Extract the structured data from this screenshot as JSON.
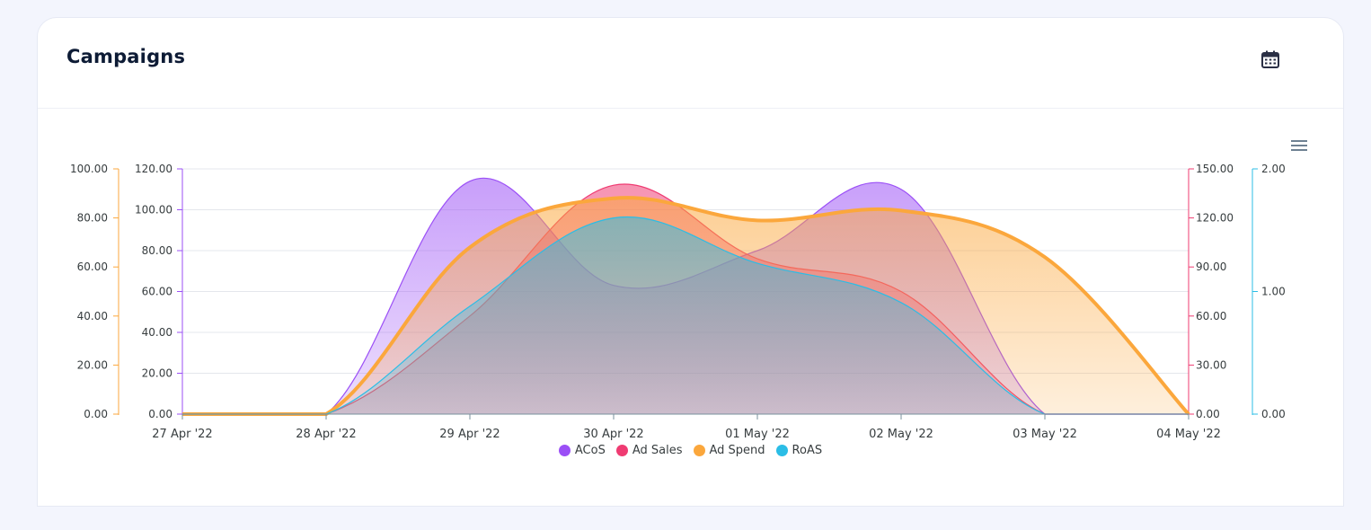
{
  "header": {
    "title": "Campaigns",
    "calendar_icon": "calendar-icon",
    "menu_icon": "hamburger-menu-icon"
  },
  "chart_data": {
    "type": "area",
    "categories": [
      "27 Apr '22",
      "28 Apr '22",
      "29 Apr '22",
      "30 Apr '22",
      "01 May '22",
      "02 May '22",
      "03 May '22",
      "04 May '22"
    ],
    "series": [
      {
        "name": "ACoS",
        "color": "#9b4ff6",
        "axis": "acos",
        "values": [
          0,
          0,
          114,
          63,
          80,
          110,
          0,
          0
        ]
      },
      {
        "name": "Ad Sales",
        "color": "#ef3b72",
        "axis": "sales",
        "values": [
          0,
          0,
          60,
          140,
          95,
          75,
          0,
          0
        ]
      },
      {
        "name": "Ad Spend",
        "color": "#fba73c",
        "axis": "spend",
        "values": [
          0,
          0,
          68,
          88,
          79,
          83,
          64,
          0
        ]
      },
      {
        "name": "RoAS",
        "color": "#2bbde6",
        "axis": "roas",
        "values": [
          0,
          0,
          0.88,
          1.6,
          1.23,
          0.91,
          0,
          0
        ]
      }
    ],
    "axes": {
      "spend": {
        "min": 0,
        "max": 100,
        "ticks": [
          "100.00",
          "80.00",
          "60.00",
          "40.00",
          "20.00",
          "0.00"
        ],
        "color": "#fba73c"
      },
      "acos": {
        "min": 0,
        "max": 120,
        "ticks": [
          "120.00",
          "100.00",
          "80.00",
          "60.00",
          "40.00",
          "20.00",
          "0.00"
        ],
        "color": "#9b4ff6"
      },
      "sales": {
        "min": 0,
        "max": 150,
        "ticks": [
          "150.00",
          "120.00",
          "90.00",
          "60.00",
          "30.00",
          "0.00"
        ],
        "color": "#ef3b72"
      },
      "roas": {
        "min": 0,
        "max": 2,
        "ticks": [
          "2.00",
          "1.00",
          "0.00"
        ],
        "color": "#2bbde6"
      }
    },
    "grid": true,
    "legend_position": "bottom-center"
  }
}
